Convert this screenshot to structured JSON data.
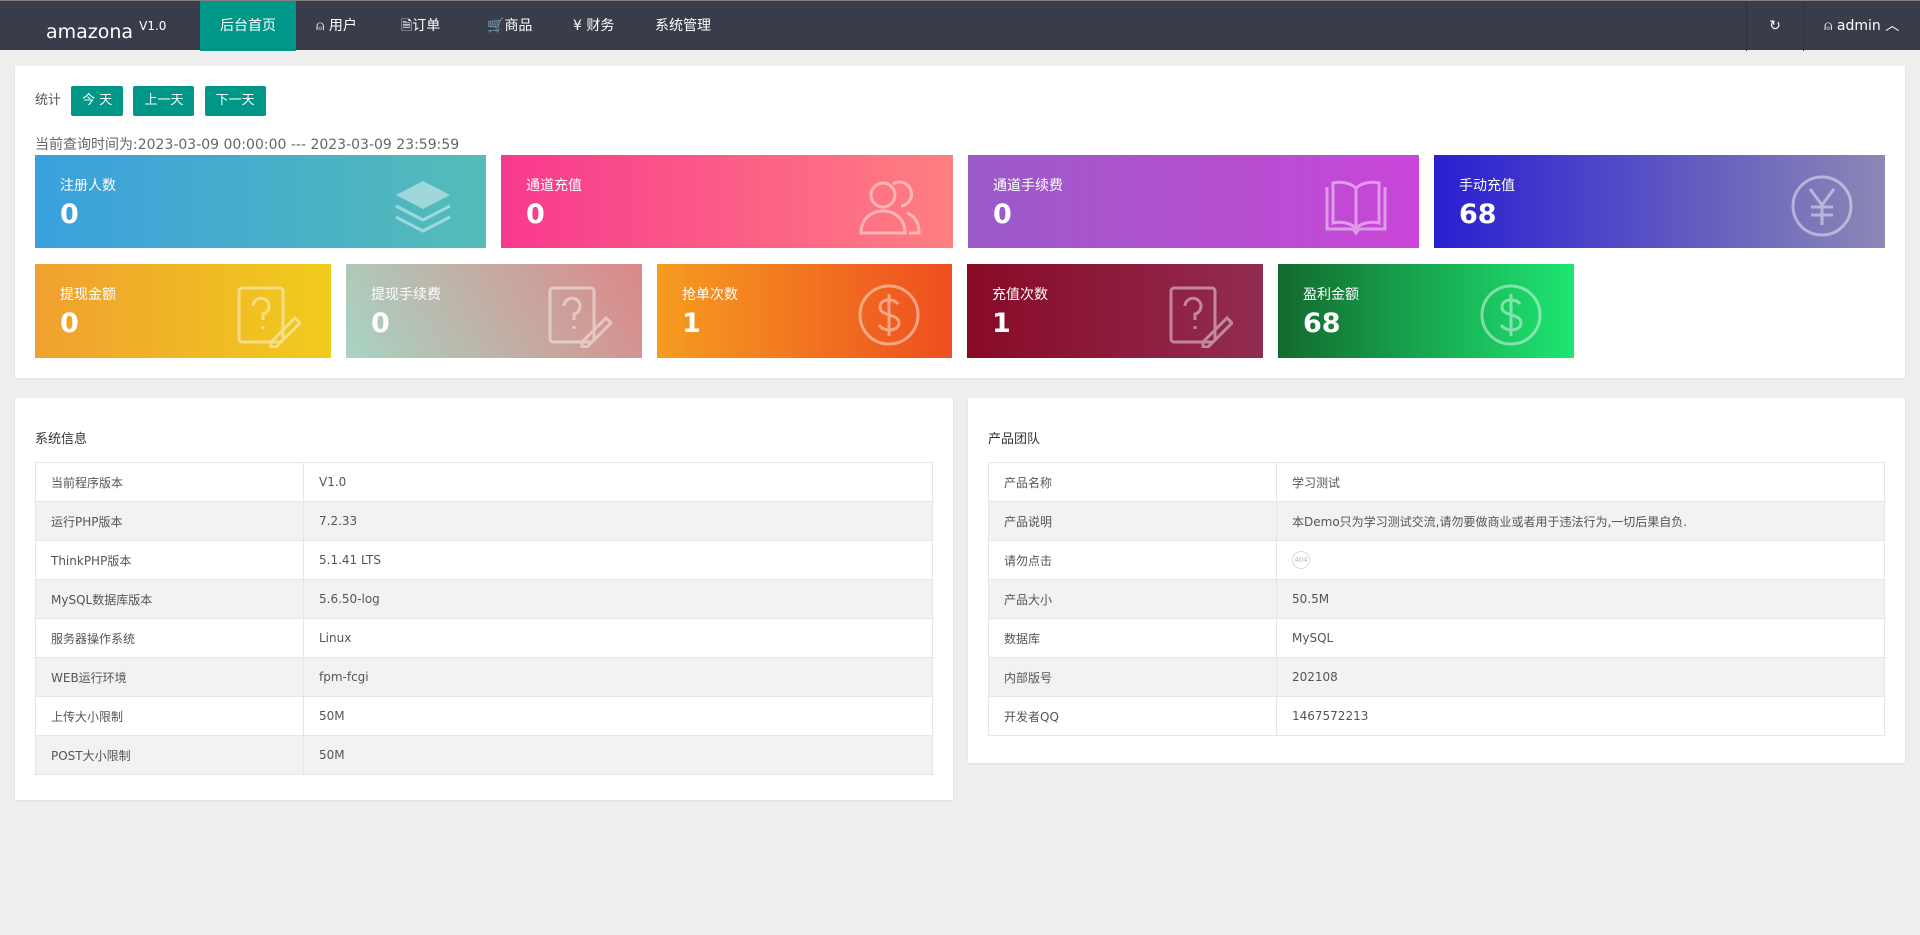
{
  "nav": {
    "brand": "amazona",
    "version": "V1.0",
    "items": [
      {
        "label": "后台首页",
        "icon": ""
      },
      {
        "label": "用户",
        "icon": "user-icon"
      },
      {
        "label": "订单",
        "icon": "document-icon"
      },
      {
        "label": "商品",
        "icon": "cart-icon"
      },
      {
        "label": "财务",
        "icon": "yen-icon"
      },
      {
        "label": "系统管理",
        "icon": ""
      }
    ],
    "refresh_icon": "refresh-icon",
    "user": "admin"
  },
  "stats": {
    "label": "统计",
    "today": "今 天",
    "prev": "上一天",
    "next": "下一天",
    "query_range": "当前查询时间为:2023-03-09 00:00:00 --- 2023-03-09 23:59:59",
    "cards": [
      {
        "label": "注册人数",
        "value": "0",
        "icon": "layers-icon",
        "colors": [
          "#3aa0dd",
          "#55bcb8"
        ]
      },
      {
        "label": "通道充值",
        "value": "0",
        "icon": "users-icon",
        "colors": [
          "#f7398e",
          "#ff8080"
        ]
      },
      {
        "label": "通道手续费",
        "value": "0",
        "icon": "book-icon",
        "colors": [
          "#9a5ac8",
          "#c946d8"
        ]
      },
      {
        "label": "手动充值",
        "value": "68",
        "icon": "yen-circle-icon",
        "colors": [
          "#2a1fd0",
          "#8c88b6"
        ]
      },
      {
        "label": "提现金额",
        "value": "0",
        "icon": "question-edit-icon",
        "colors": [
          "#f0a030",
          "#f0cc1c"
        ]
      },
      {
        "label": "提现手续费",
        "value": "0",
        "icon": "question-edit-icon",
        "colors": [
          "#a8d4c2",
          "#dc8888"
        ]
      },
      {
        "label": "抢单次数",
        "value": "1",
        "icon": "dollar-circle-icon",
        "colors": [
          "#f59c20",
          "#ee4e20"
        ]
      },
      {
        "label": "充值次数",
        "value": "1",
        "icon": "question-edit-icon",
        "colors": [
          "#880a26",
          "#922c52"
        ]
      },
      {
        "label": "盈利金额",
        "value": "68",
        "icon": "dollar-circle-icon",
        "colors": [
          "#126a2e",
          "#1ee672"
        ]
      }
    ]
  },
  "system_info": {
    "title": "系统信息",
    "rows": [
      [
        "当前程序版本",
        "V1.0"
      ],
      [
        "运行PHP版本",
        "7.2.33"
      ],
      [
        "ThinkPHP版本",
        "5.1.41 LTS"
      ],
      [
        "MySQL数据库版本",
        "5.6.50-log"
      ],
      [
        "服务器操作系统",
        "Linux"
      ],
      [
        "WEB运行环境",
        "fpm-fcgi"
      ],
      [
        "上传大小限制",
        "50M"
      ],
      [
        "POST大小限制",
        "50M"
      ]
    ]
  },
  "team": {
    "title": "产品团队",
    "rows": [
      [
        "产品名称",
        "学习测试"
      ],
      [
        "产品说明",
        "本Demo只为学习测试交流,请勿要做商业或者用于违法行为,一切后果自负."
      ],
      [
        "请勿点击",
        "404"
      ],
      [
        "产品大小",
        "50.5M"
      ],
      [
        "数据库",
        "MySQL"
      ],
      [
        "内部版号",
        "202108"
      ],
      [
        "开发者QQ",
        "1467572213"
      ]
    ]
  }
}
